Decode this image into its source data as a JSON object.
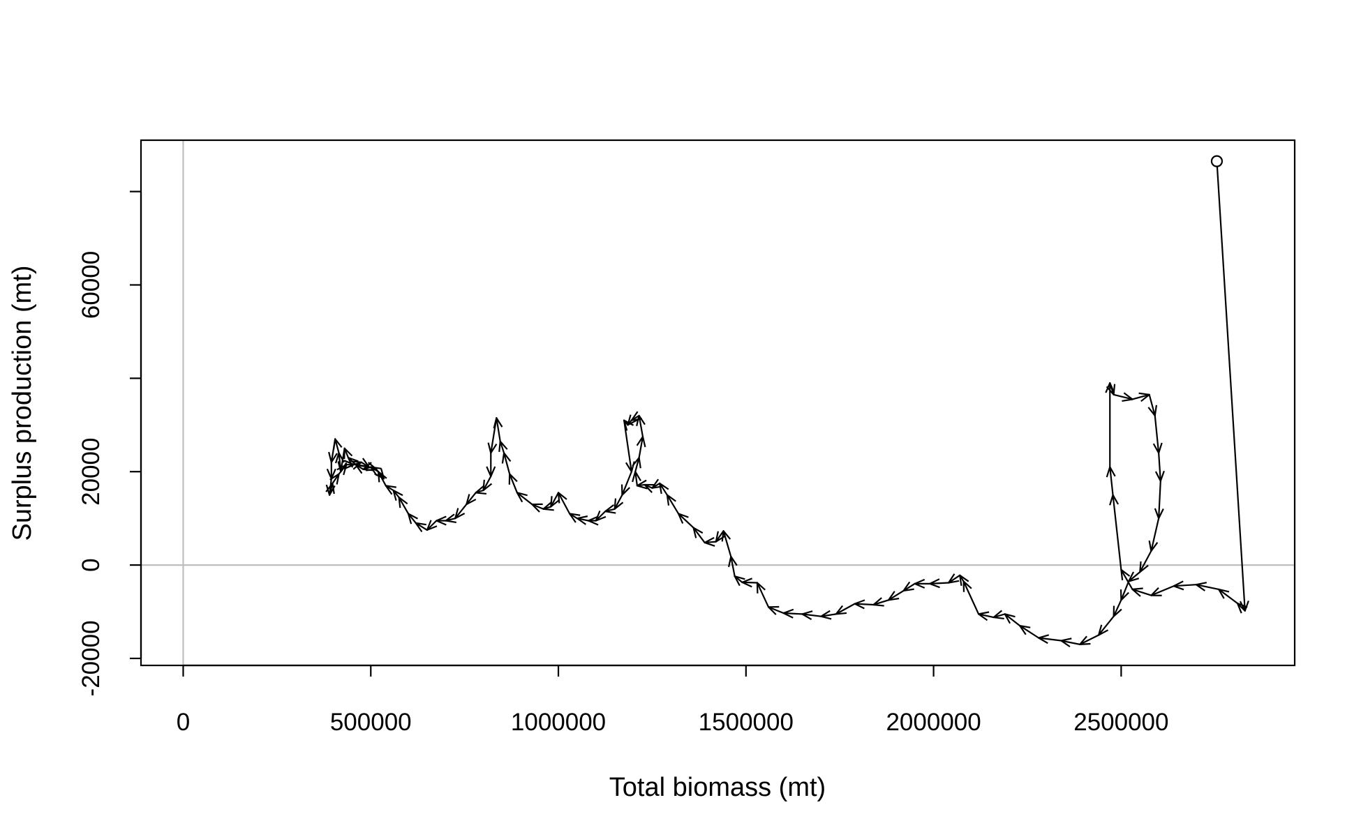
{
  "chart_data": {
    "type": "line",
    "title": "",
    "xlabel": "Total biomass (mt)",
    "ylabel": "Surplus production (mt)",
    "xlim": [
      -112500,
      2962500
    ],
    "ylim": [
      -21500,
      91000
    ],
    "x_ticks": [
      {
        "value": 0,
        "label": "0"
      },
      {
        "value": 500000,
        "label": "500000"
      },
      {
        "value": 1000000,
        "label": "1000000"
      },
      {
        "value": 1500000,
        "label": "1500000"
      },
      {
        "value": 2000000,
        "label": "2000000"
      },
      {
        "value": 2500000,
        "label": "2500000"
      }
    ],
    "y_ticks": [
      {
        "value": -20000,
        "label": "-20000"
      },
      {
        "value": 0,
        "label": "0"
      },
      {
        "value": 20000,
        "label": "20000"
      },
      {
        "value": 40000,
        "label": ""
      },
      {
        "value": 60000,
        "label": "60000"
      },
      {
        "value": 80000,
        "label": ""
      }
    ],
    "reference_lines": {
      "x": 0,
      "y": 0,
      "color": "#bebebe"
    },
    "series": [
      {
        "start_marker": "open-circle",
        "points": [
          [
            2755000,
            86500
          ],
          [
            2830000,
            -9800
          ],
          [
            2810000,
            -8200
          ],
          [
            2760000,
            -5200
          ],
          [
            2700000,
            -4200
          ],
          [
            2640000,
            -4500
          ],
          [
            2580000,
            -6500
          ],
          [
            2530000,
            -5200
          ],
          [
            2500000,
            -1000
          ],
          [
            2478000,
            15000
          ],
          [
            2470000,
            21000
          ],
          [
            2470000,
            39000
          ],
          [
            2480000,
            36500
          ],
          [
            2530000,
            35500
          ],
          [
            2575000,
            36500
          ],
          [
            2590000,
            32000
          ],
          [
            2600000,
            24000
          ],
          [
            2605000,
            18000
          ],
          [
            2600000,
            10000
          ],
          [
            2580000,
            3000
          ],
          [
            2550000,
            -1500
          ],
          [
            2520000,
            -3500
          ],
          [
            2500000,
            -7500
          ],
          [
            2480000,
            -11000
          ],
          [
            2440000,
            -15000
          ],
          [
            2390000,
            -17000
          ],
          [
            2340000,
            -16200
          ],
          [
            2280000,
            -15600
          ],
          [
            2230000,
            -13000
          ],
          [
            2190000,
            -10500
          ],
          [
            2160000,
            -11200
          ],
          [
            2120000,
            -10500
          ],
          [
            2080000,
            -3500
          ],
          [
            2070000,
            -2200
          ],
          [
            2040000,
            -3800
          ],
          [
            1990000,
            -4000
          ],
          [
            1950000,
            -4000
          ],
          [
            1920000,
            -5500
          ],
          [
            1880000,
            -7500
          ],
          [
            1840000,
            -8500
          ],
          [
            1790000,
            -8300
          ],
          [
            1740000,
            -10500
          ],
          [
            1700000,
            -11000
          ],
          [
            1650000,
            -10500
          ],
          [
            1600000,
            -10300
          ],
          [
            1560000,
            -9000
          ],
          [
            1530000,
            -3800
          ],
          [
            1490000,
            -3700
          ],
          [
            1470000,
            -2400
          ],
          [
            1460000,
            1800
          ],
          [
            1440000,
            7300
          ],
          [
            1420000,
            5000
          ],
          [
            1390000,
            4800
          ],
          [
            1360000,
            8000
          ],
          [
            1320000,
            11000
          ],
          [
            1290000,
            15000
          ],
          [
            1270000,
            17500
          ],
          [
            1250000,
            16500
          ],
          [
            1230000,
            17200
          ],
          [
            1210000,
            17000
          ],
          [
            1205000,
            20000
          ],
          [
            1215000,
            23000
          ],
          [
            1225000,
            27500
          ],
          [
            1215000,
            32000
          ],
          [
            1195000,
            31000
          ],
          [
            1185000,
            30000
          ],
          [
            1175000,
            31000
          ],
          [
            1195000,
            20000
          ],
          [
            1170000,
            15000
          ],
          [
            1150000,
            12000
          ],
          [
            1125000,
            11500
          ],
          [
            1100000,
            9500
          ],
          [
            1080000,
            9500
          ],
          [
            1050000,
            10000
          ],
          [
            1030000,
            11000
          ],
          [
            1000000,
            15500
          ],
          [
            980000,
            12500
          ],
          [
            960000,
            12000
          ],
          [
            930000,
            13000
          ],
          [
            890000,
            15500
          ],
          [
            870000,
            19500
          ],
          [
            855000,
            24000
          ],
          [
            845000,
            26500
          ],
          [
            835000,
            31500
          ],
          [
            820000,
            24000
          ],
          [
            820000,
            19000
          ],
          [
            800000,
            16000
          ],
          [
            780000,
            15500
          ],
          [
            755000,
            13000
          ],
          [
            725000,
            10000
          ],
          [
            700000,
            9500
          ],
          [
            675000,
            9500
          ],
          [
            650000,
            7500
          ],
          [
            620000,
            9000
          ],
          [
            600000,
            11000
          ],
          [
            575000,
            14500
          ],
          [
            560000,
            16000
          ],
          [
            540000,
            17000
          ],
          [
            520000,
            20000
          ],
          [
            500000,
            21000
          ],
          [
            480000,
            20500
          ],
          [
            460000,
            21500
          ],
          [
            440000,
            23000
          ],
          [
            430000,
            25000
          ],
          [
            420000,
            20000
          ],
          [
            415000,
            24000
          ],
          [
            405000,
            27000
          ],
          [
            395000,
            22000
          ],
          [
            395000,
            18500
          ],
          [
            390000,
            15000
          ],
          [
            398000,
            17500
          ],
          [
            415000,
            19500
          ],
          [
            435000,
            21500
          ],
          [
            455000,
            21500
          ],
          [
            475000,
            22000
          ],
          [
            495000,
            21000
          ],
          [
            515000,
            20500
          ],
          [
            535000,
            18500
          ]
        ]
      }
    ]
  }
}
